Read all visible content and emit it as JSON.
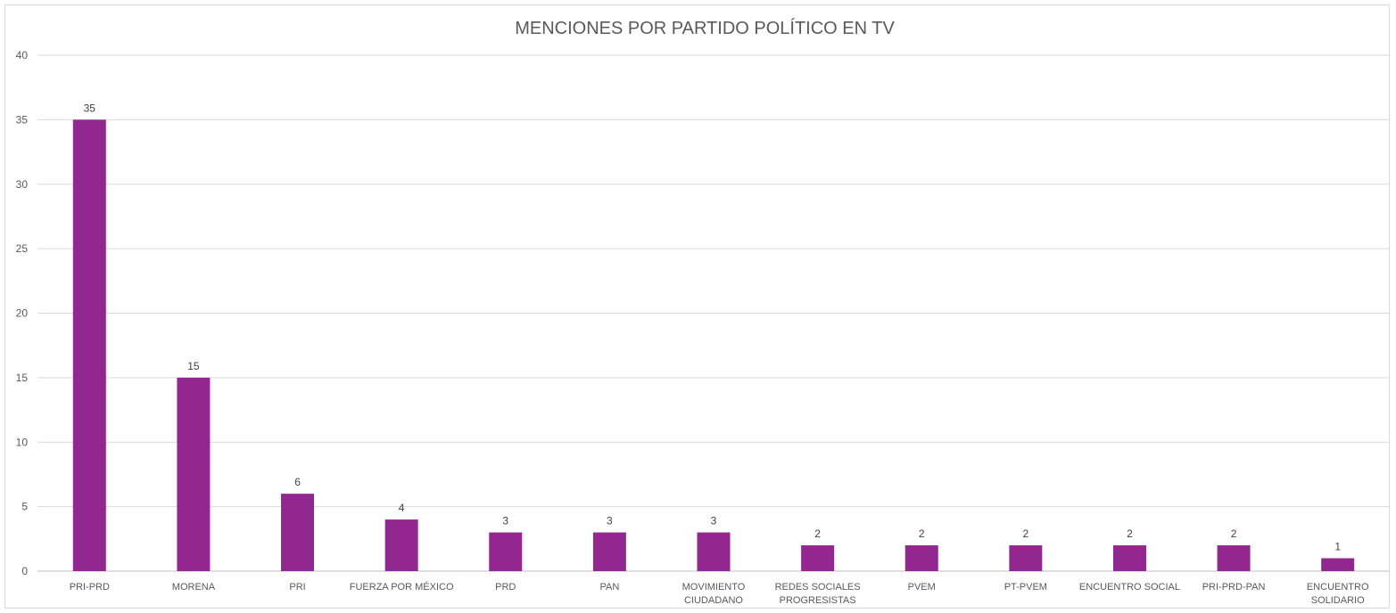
{
  "chart_data": {
    "type": "bar",
    "title": "MENCIONES POR PARTIDO POLÍTICO EN TV",
    "xlabel": "",
    "ylabel": "",
    "ylim": [
      0,
      40
    ],
    "yticks": [
      "0",
      "5",
      "10",
      "15",
      "20",
      "25",
      "30",
      "35",
      "40"
    ],
    "grid": true,
    "legend": "none",
    "bar_color": "#92278f",
    "categories": [
      [
        "PRI-PRD"
      ],
      [
        "MORENA"
      ],
      [
        "PRI"
      ],
      [
        "FUERZA POR MÉXICO"
      ],
      [
        "PRD"
      ],
      [
        "PAN"
      ],
      [
        "MOVIMIENTO",
        "CIUDADANO"
      ],
      [
        "REDES SOCIALES",
        "PROGRESISTAS"
      ],
      [
        "PVEM"
      ],
      [
        "PT-PVEM"
      ],
      [
        "ENCUENTRO SOCIAL"
      ],
      [
        "PRI-PRD-PAN"
      ],
      [
        "ENCUENTRO",
        "SOLIDARIO"
      ]
    ],
    "values": [
      35,
      15,
      6,
      4,
      3,
      3,
      3,
      2,
      2,
      2,
      2,
      2,
      1
    ],
    "data_labels": [
      "35",
      "15",
      "6",
      "4",
      "3",
      "3",
      "3",
      "2",
      "2",
      "2",
      "2",
      "2",
      "1"
    ]
  }
}
